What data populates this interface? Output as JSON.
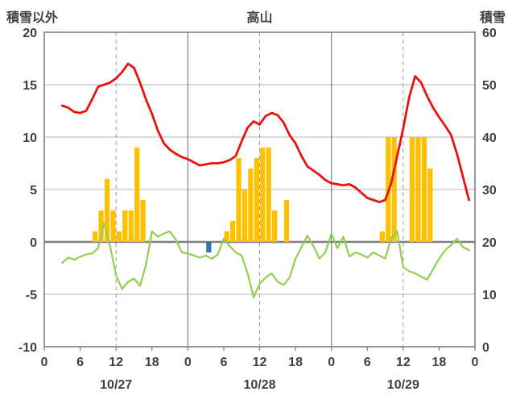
{
  "header": {
    "left_axis_title": "積雪以外",
    "title": "高山",
    "right_axis_title": "積雪"
  },
  "colors": {
    "temperature_line": "#e8120f",
    "secondary_line": "#92d050",
    "precip_bar": "#ffc000",
    "snow_bar": "#2e75b6",
    "grid": "#b3b3b3",
    "axis": "#7f7f7f",
    "label": "#404040"
  },
  "chart_data": {
    "type": "combo_line_bar",
    "title": "高山",
    "left_axis": {
      "label": "積雪以外",
      "min": -10,
      "max": 20,
      "ticks": [
        -10,
        -5,
        0,
        5,
        10,
        15,
        20
      ]
    },
    "right_axis": {
      "label": "積雪",
      "min": 0,
      "max": 60,
      "ticks": [
        0,
        10,
        20,
        30,
        40,
        50,
        60
      ]
    },
    "x_total_hours": 72,
    "x_tick_hours": [
      0,
      6,
      12,
      18,
      24,
      30,
      36,
      42,
      48,
      54,
      60,
      66,
      72
    ],
    "x_tick_labels": [
      "0",
      "6",
      "12",
      "18",
      "0",
      "6",
      "12",
      "18",
      "0",
      "6",
      "12",
      "18",
      "0"
    ],
    "x_gridlines_dashed_hours": [
      12,
      36,
      60
    ],
    "x_gridlines_solid_hours": [
      24,
      48
    ],
    "day_labels": [
      {
        "label": "10/27",
        "hour": 12
      },
      {
        "label": "10/28",
        "hour": 36
      },
      {
        "label": "10/29",
        "hour": 60
      }
    ],
    "series": {
      "temperature_line": {
        "name": "temperature",
        "axis": "left",
        "color": "#e8120f",
        "points": [
          [
            3,
            13.0
          ],
          [
            4,
            12.8
          ],
          [
            5,
            12.4
          ],
          [
            6,
            12.3
          ],
          [
            7,
            12.5
          ],
          [
            8,
            13.6
          ],
          [
            9,
            14.8
          ],
          [
            10,
            15.0
          ],
          [
            11,
            15.2
          ],
          [
            12,
            15.6
          ],
          [
            13,
            16.2
          ],
          [
            14,
            17.0
          ],
          [
            15,
            16.6
          ],
          [
            16,
            15.2
          ],
          [
            17,
            13.6
          ],
          [
            18,
            12.2
          ],
          [
            19,
            10.6
          ],
          [
            20,
            9.4
          ],
          [
            21,
            8.8
          ],
          [
            22,
            8.4
          ],
          [
            23,
            8.1
          ],
          [
            24,
            7.9
          ],
          [
            25,
            7.6
          ],
          [
            26,
            7.3
          ],
          [
            27,
            7.4
          ],
          [
            28,
            7.5
          ],
          [
            29,
            7.5
          ],
          [
            30,
            7.6
          ],
          [
            31,
            7.8
          ],
          [
            32,
            8.2
          ],
          [
            33,
            9.6
          ],
          [
            34,
            10.9
          ],
          [
            35,
            11.5
          ],
          [
            36,
            11.2
          ],
          [
            37,
            12.0
          ],
          [
            38,
            12.3
          ],
          [
            39,
            12.1
          ],
          [
            40,
            11.4
          ],
          [
            41,
            10.2
          ],
          [
            42,
            9.4
          ],
          [
            43,
            8.2
          ],
          [
            44,
            7.2
          ],
          [
            45,
            6.8
          ],
          [
            46,
            6.4
          ],
          [
            47,
            5.9
          ],
          [
            48,
            5.6
          ],
          [
            49,
            5.5
          ],
          [
            50,
            5.4
          ],
          [
            51,
            5.5
          ],
          [
            52,
            5.2
          ],
          [
            53,
            4.7
          ],
          [
            54,
            4.2
          ],
          [
            55,
            4.0
          ],
          [
            56,
            3.8
          ],
          [
            57,
            4.0
          ],
          [
            58,
            5.6
          ],
          [
            59,
            8.2
          ],
          [
            60,
            10.8
          ],
          [
            61,
            13.8
          ],
          [
            62,
            15.8
          ],
          [
            63,
            15.2
          ],
          [
            64,
            13.9
          ],
          [
            65,
            12.8
          ],
          [
            66,
            11.9
          ],
          [
            67,
            11.1
          ],
          [
            68,
            10.2
          ],
          [
            69,
            8.4
          ],
          [
            70,
            6.2
          ],
          [
            71,
            4.0
          ]
        ]
      },
      "secondary_line": {
        "name": "secondary",
        "axis": "left",
        "color": "#92d050",
        "points": [
          [
            3,
            -2.0
          ],
          [
            4,
            -1.5
          ],
          [
            5,
            -1.7
          ],
          [
            6,
            -1.4
          ],
          [
            7,
            -1.2
          ],
          [
            8,
            -1.1
          ],
          [
            9,
            -0.6
          ],
          [
            10,
            1.8
          ],
          [
            11,
            -0.4
          ],
          [
            12,
            -3.2
          ],
          [
            13,
            -4.5
          ],
          [
            14,
            -3.8
          ],
          [
            15,
            -3.5
          ],
          [
            16,
            -4.2
          ],
          [
            17,
            -2.2
          ],
          [
            18,
            1.0
          ],
          [
            19,
            0.5
          ],
          [
            20,
            0.8
          ],
          [
            21,
            1.0
          ],
          [
            22,
            0.2
          ],
          [
            23,
            -1.0
          ],
          [
            24,
            -1.1
          ],
          [
            25,
            -1.3
          ],
          [
            26,
            -1.5
          ],
          [
            27,
            -1.3
          ],
          [
            28,
            -1.6
          ],
          [
            29,
            -1.2
          ],
          [
            30,
            0.3
          ],
          [
            31,
            -0.4
          ],
          [
            32,
            -1.0
          ],
          [
            33,
            -1.3
          ],
          [
            34,
            -3.0
          ],
          [
            35,
            -5.3
          ],
          [
            36,
            -4.0
          ],
          [
            37,
            -3.4
          ],
          [
            38,
            -3.0
          ],
          [
            39,
            -3.8
          ],
          [
            40,
            -4.1
          ],
          [
            41,
            -3.4
          ],
          [
            42,
            -1.6
          ],
          [
            43,
            -0.5
          ],
          [
            44,
            0.6
          ],
          [
            45,
            -0.4
          ],
          [
            46,
            -1.6
          ],
          [
            47,
            -1.0
          ],
          [
            48,
            0.8
          ],
          [
            49,
            -0.6
          ],
          [
            50,
            0.5
          ],
          [
            51,
            -1.4
          ],
          [
            52,
            -1.0
          ],
          [
            53,
            -1.2
          ],
          [
            54,
            -1.5
          ],
          [
            55,
            -1.0
          ],
          [
            56,
            -1.3
          ],
          [
            57,
            -1.6
          ],
          [
            58,
            0.4
          ],
          [
            59,
            1.0
          ],
          [
            60,
            -2.4
          ],
          [
            61,
            -2.8
          ],
          [
            62,
            -3.0
          ],
          [
            63,
            -3.3
          ],
          [
            64,
            -3.6
          ],
          [
            65,
            -2.6
          ],
          [
            66,
            -1.6
          ],
          [
            67,
            -0.8
          ],
          [
            68,
            -0.3
          ],
          [
            69,
            0.3
          ],
          [
            70,
            -0.5
          ],
          [
            71,
            -0.8
          ]
        ]
      },
      "precip_bars": {
        "name": "precipitation",
        "axis": "left",
        "color": "#ffc000",
        "bars": [
          [
            8,
            1
          ],
          [
            9,
            3
          ],
          [
            10,
            6
          ],
          [
            11,
            3
          ],
          [
            12,
            1
          ],
          [
            13,
            3
          ],
          [
            14,
            3
          ],
          [
            15,
            9
          ],
          [
            16,
            4
          ],
          [
            30,
            1
          ],
          [
            31,
            2
          ],
          [
            32,
            8
          ],
          [
            33,
            5
          ],
          [
            34,
            7
          ],
          [
            35,
            8
          ],
          [
            36,
            9
          ],
          [
            37,
            9
          ],
          [
            38,
            3
          ],
          [
            40,
            4
          ],
          [
            56,
            1
          ],
          [
            57,
            10
          ],
          [
            58,
            10
          ],
          [
            61,
            10
          ],
          [
            62,
            10
          ],
          [
            63,
            10
          ],
          [
            64,
            7
          ]
        ]
      },
      "snow_bars": {
        "name": "snow",
        "axis": "left",
        "color": "#2e75b6",
        "bars": [
          [
            27,
            -1
          ]
        ]
      }
    }
  }
}
